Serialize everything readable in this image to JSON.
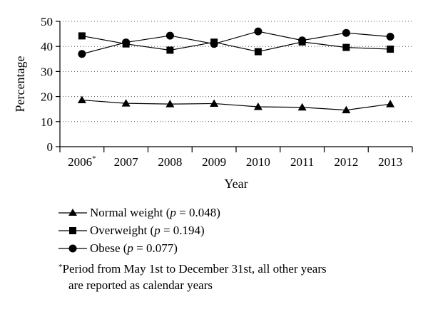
{
  "chart_data": {
    "type": "line",
    "title": "",
    "xlabel": "Year",
    "ylabel": "Percentage",
    "ylim": [
      0,
      50
    ],
    "yticks": [
      0,
      10,
      20,
      30,
      40,
      50
    ],
    "grid": "horizontal dotted",
    "categories": [
      "2006",
      "2007",
      "2008",
      "2009",
      "2010",
      "2011",
      "2012",
      "2013"
    ],
    "category_marker": {
      "index": 0,
      "mark": "*"
    },
    "series": [
      {
        "name": "Normal weight",
        "p_label": "p",
        "p_value": "= 0.048",
        "marker": "triangle",
        "values": [
          18.6,
          17.3,
          17.0,
          17.2,
          15.9,
          15.7,
          14.6,
          17.0
        ]
      },
      {
        "name": "Overweight",
        "p_label": "p",
        "p_value": "= 0.194",
        "marker": "square",
        "values": [
          44.2,
          41.0,
          38.5,
          41.7,
          37.9,
          41.8,
          39.6,
          38.9
        ]
      },
      {
        "name": "Obese",
        "p_label": "p",
        "p_value": "= 0.077",
        "marker": "circle",
        "values": [
          37.0,
          41.6,
          44.3,
          41.0,
          46.0,
          42.4,
          45.4,
          43.9
        ]
      }
    ]
  },
  "footnote": {
    "mark": "*",
    "line1": "Period from May 1st to December 31st, all other years",
    "line2": "are reported as calendar years"
  }
}
